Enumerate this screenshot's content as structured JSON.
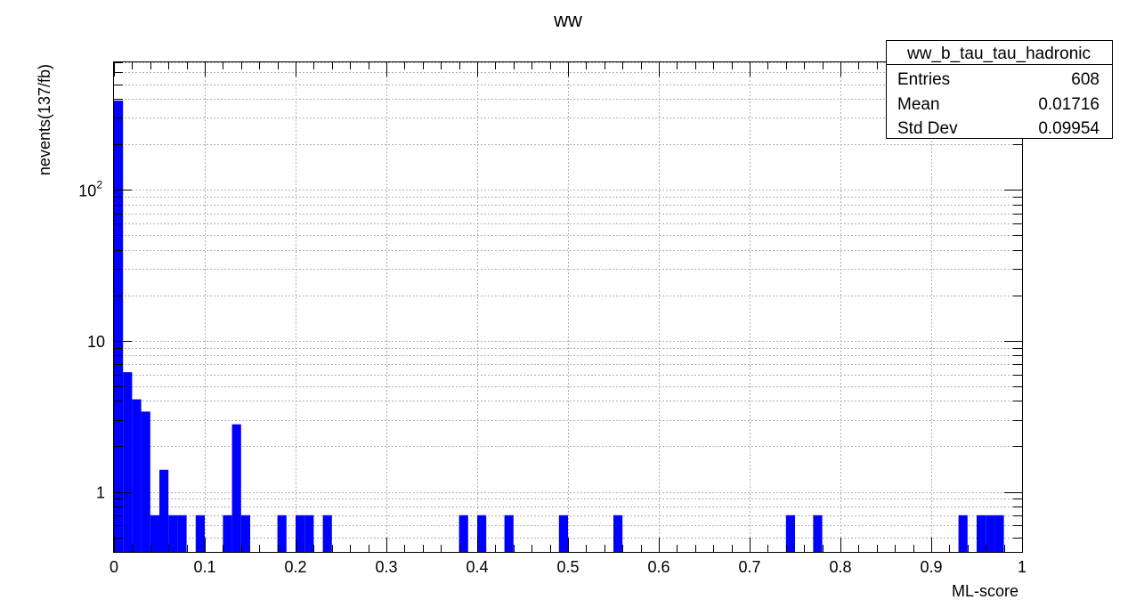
{
  "chart_data": {
    "type": "bar",
    "title": "ww",
    "xlabel": "ML-score",
    "ylabel": "nevents(137/fb)",
    "xlim": [
      0,
      1
    ],
    "ylim": [
      0.4,
      700
    ],
    "log_y": true,
    "grid": true,
    "bin_width": 0.01,
    "bar_color": "#0000ff",
    "x_ticks": [
      0,
      0.1,
      0.2,
      0.3,
      0.4,
      0.5,
      0.6,
      0.7,
      0.8,
      0.9,
      1
    ],
    "x_tick_labels": [
      "0",
      "0.1",
      "0.2",
      "0.3",
      "0.4",
      "0.5",
      "0.6",
      "0.7",
      "0.8",
      "0.9",
      "1"
    ],
    "y_ticks": [
      {
        "value": 1,
        "base": "1",
        "exp": ""
      },
      {
        "value": 10,
        "base": "10",
        "exp": ""
      },
      {
        "value": 100,
        "base": "10",
        "exp": "2"
      }
    ],
    "bins": [
      {
        "x": 0.0,
        "y": 390
      },
      {
        "x": 0.01,
        "y": 6.2
      },
      {
        "x": 0.02,
        "y": 4.1
      },
      {
        "x": 0.03,
        "y": 3.4
      },
      {
        "x": 0.04,
        "y": 0.7
      },
      {
        "x": 0.05,
        "y": 1.4
      },
      {
        "x": 0.06,
        "y": 0.7
      },
      {
        "x": 0.07,
        "y": 0.7
      },
      {
        "x": 0.09,
        "y": 0.7
      },
      {
        "x": 0.12,
        "y": 0.7
      },
      {
        "x": 0.13,
        "y": 2.8
      },
      {
        "x": 0.14,
        "y": 0.7
      },
      {
        "x": 0.18,
        "y": 0.7
      },
      {
        "x": 0.2,
        "y": 0.7
      },
      {
        "x": 0.21,
        "y": 0.7
      },
      {
        "x": 0.23,
        "y": 0.7
      },
      {
        "x": 0.38,
        "y": 0.7
      },
      {
        "x": 0.4,
        "y": 0.7
      },
      {
        "x": 0.43,
        "y": 0.7
      },
      {
        "x": 0.49,
        "y": 0.7
      },
      {
        "x": 0.55,
        "y": 0.7
      },
      {
        "x": 0.74,
        "y": 0.7
      },
      {
        "x": 0.77,
        "y": 0.7
      },
      {
        "x": 0.93,
        "y": 0.7
      },
      {
        "x": 0.95,
        "y": 0.7
      },
      {
        "x": 0.96,
        "y": 0.7
      },
      {
        "x": 0.97,
        "y": 0.7
      }
    ],
    "stats_box": {
      "name": "ww_b_tau_tau_hadronic",
      "rows": [
        {
          "label": "Entries",
          "value": "608"
        },
        {
          "label": "Mean",
          "value": "0.01716"
        },
        {
          "label": "Std Dev",
          "value": "0.09954"
        }
      ]
    }
  }
}
